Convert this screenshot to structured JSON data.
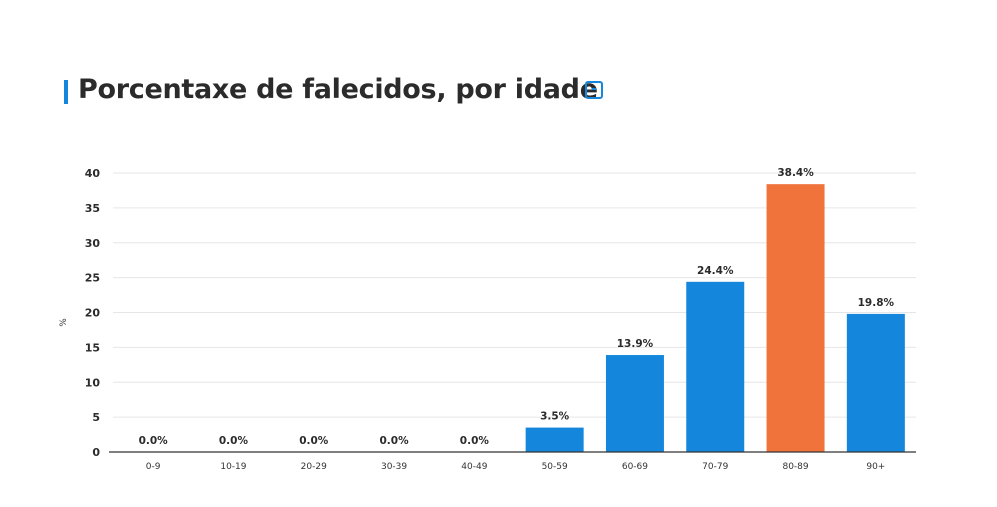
{
  "header": {
    "title": "Porcentaxe de falecidos, por idade",
    "collapse_label": "-"
  },
  "colors": {
    "accent": "#1487dd",
    "bar_default": "#1487dd",
    "bar_highlight": "#f0733b"
  },
  "chart_data": {
    "type": "bar",
    "title": "Porcentaxe de falecidos, por idade",
    "xlabel": "",
    "ylabel": "%",
    "categories": [
      "0-9",
      "10-19",
      "20-29",
      "30-39",
      "40-49",
      "50-59",
      "60-69",
      "70-79",
      "80-89",
      "90+"
    ],
    "values": [
      0.0,
      0.0,
      0.0,
      0.0,
      0.0,
      3.5,
      13.9,
      24.4,
      38.4,
      19.8
    ],
    "data_labels": [
      "0.0%",
      "0.0%",
      "0.0%",
      "0.0%",
      "0.0%",
      "3.5%",
      "13.9%",
      "24.4%",
      "38.4%",
      "19.8%"
    ],
    "highlight_category": "80-89",
    "ylim": [
      0,
      40
    ],
    "yticks": [
      0,
      5,
      10,
      15,
      20,
      25,
      30,
      35,
      40
    ],
    "grid": true,
    "legend": "none"
  }
}
